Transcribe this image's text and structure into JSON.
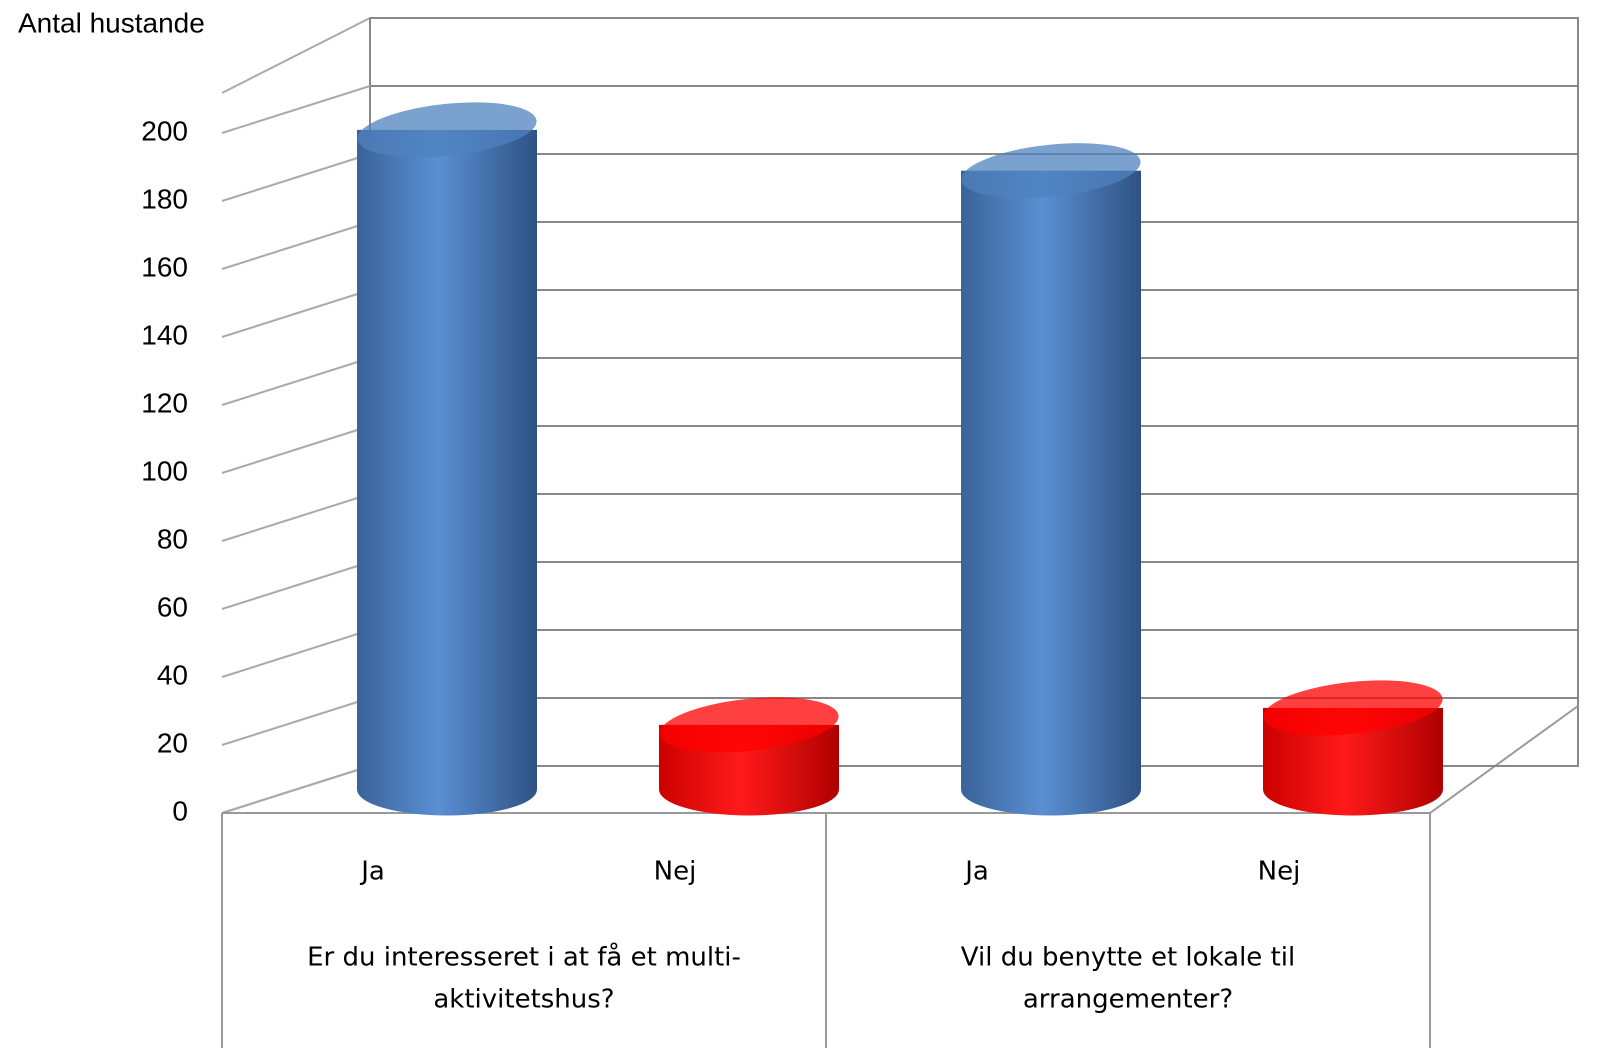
{
  "chart_data": {
    "type": "bar3d",
    "y_label": "Antal hustande",
    "categories": [
      "Ja",
      "Nej",
      "Ja",
      "Nej"
    ],
    "groups": [
      {
        "lines": [
          "Er du interesseret i at få et multi-",
          "aktivitetshus?"
        ]
      },
      {
        "lines": [
          "Vil du benytte et lokale til",
          "arrangementer?"
        ]
      }
    ],
    "values": [
      194,
      19,
      182,
      24
    ],
    "colors": [
      "#4f81bd",
      "#ff0000",
      "#4f81bd",
      "#ff0000"
    ],
    "ylim": [
      0,
      200
    ],
    "yticks": [
      0,
      20,
      40,
      60,
      80,
      100,
      120,
      140,
      160,
      180,
      200
    ],
    "grid": true
  }
}
